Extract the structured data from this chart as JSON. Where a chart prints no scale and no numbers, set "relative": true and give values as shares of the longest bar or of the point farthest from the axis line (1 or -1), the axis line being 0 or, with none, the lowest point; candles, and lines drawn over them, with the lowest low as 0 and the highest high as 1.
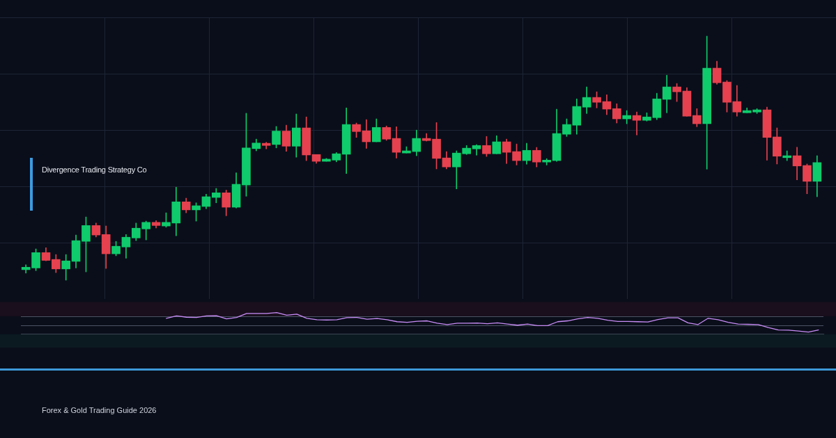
{
  "chart_data": [
    {
      "type": "candlestick",
      "title": "Divergence Trading Strategy Co",
      "annotations": [
        "Forex & Gold Trading Guide 2026"
      ],
      "relative": true,
      "grid": true,
      "tick_labels": false,
      "categories": [
        null,
        null,
        null,
        null,
        null,
        null,
        null,
        null,
        null,
        null,
        null,
        null,
        null,
        null,
        null,
        null,
        null,
        null,
        null,
        null,
        null,
        null,
        null,
        null,
        null,
        null,
        null,
        null,
        null,
        null,
        null,
        null,
        null,
        null,
        null,
        null,
        null,
        null,
        null,
        null,
        null,
        null,
        null,
        null,
        null,
        null,
        null,
        null,
        null,
        null,
        null,
        null,
        null,
        null,
        null,
        null,
        null,
        null,
        null,
        null,
        null,
        null,
        null,
        null,
        null,
        null,
        null,
        null,
        null,
        null,
        null,
        null,
        null,
        null,
        null,
        null,
        null,
        null,
        null,
        null
      ],
      "ohlc": [
        [
          0.043,
          0.063,
          0.029,
          0.053
        ],
        [
          0.05,
          0.128,
          0.039,
          0.113
        ],
        [
          0.113,
          0.133,
          0.079,
          0.081
        ],
        [
          0.085,
          0.105,
          0.031,
          0.046
        ],
        [
          0.046,
          0.105,
          0,
          0.079
        ],
        [
          0.077,
          0.185,
          0.05,
          0.162
        ],
        [
          0.159,
          0.259,
          0.034,
          0.224
        ],
        [
          0.224,
          0.234,
          0.177,
          0.185
        ],
        [
          0.187,
          0.222,
          0.048,
          0.108
        ],
        [
          0.108,
          0.159,
          0.1,
          0.139
        ],
        [
          0.136,
          0.187,
          0.09,
          0.176
        ],
        [
          0.173,
          0.234,
          0.162,
          0.213
        ],
        [
          0.21,
          0.242,
          0.165,
          0.237
        ],
        [
          0.237,
          0.244,
          0.214,
          0.224
        ],
        [
          0.222,
          0.276,
          0.217,
          0.237
        ],
        [
          0.234,
          0.381,
          0.182,
          0.321
        ],
        [
          0.321,
          0.336,
          0.276,
          0.288
        ],
        [
          0.288,
          0.317,
          0.242,
          0.305
        ],
        [
          0.302,
          0.352,
          0.293,
          0.342
        ],
        [
          0.339,
          0.376,
          0.317,
          0.358
        ],
        [
          0.358,
          0.369,
          0.264,
          0.299
        ],
        [
          0.299,
          0.44,
          0.296,
          0.393
        ],
        [
          0.39,
          0.684,
          0.344,
          0.542
        ],
        [
          0.539,
          0.578,
          0.53,
          0.562
        ],
        [
          0.561,
          0.565,
          0.538,
          0.552
        ],
        [
          0.556,
          0.63,
          0.542,
          0.611
        ],
        [
          0.611,
          0.635,
          0.528,
          0.549
        ],
        [
          0.549,
          0.681,
          0.504,
          0.624
        ],
        [
          0.624,
          0.669,
          0.49,
          0.513
        ],
        [
          0.515,
          0.515,
          0.479,
          0.487
        ],
        [
          0.487,
          0.499,
          0.487,
          0.496
        ],
        [
          0.492,
          0.523,
          0.485,
          0.518
        ],
        [
          0.516,
          0.706,
          0.437,
          0.638
        ],
        [
          0.638,
          0.644,
          0.585,
          0.609
        ],
        [
          0.612,
          0.658,
          0.54,
          0.567
        ],
        [
          0.567,
          0.661,
          0.567,
          0.626
        ],
        [
          0.626,
          0.632,
          0.573,
          0.578
        ],
        [
          0.581,
          0.629,
          0.5,
          0.524
        ],
        [
          0.521,
          0.547,
          0.521,
          0.53
        ],
        [
          0.527,
          0.615,
          0.51,
          0.581
        ],
        [
          0.581,
          0.601,
          0.57,
          0.572
        ],
        [
          0.578,
          0.646,
          0.456,
          0.499
        ],
        [
          0.501,
          0.527,
          0.456,
          0.464
        ],
        [
          0.464,
          0.53,
          0.374,
          0.521
        ],
        [
          0.518,
          0.552,
          0.515,
          0.541
        ],
        [
          0.538,
          0.555,
          0.512,
          0.552
        ],
        [
          0.552,
          0.589,
          0.507,
          0.518
        ],
        [
          0.518,
          0.592,
          0.518,
          0.567
        ],
        [
          0.567,
          0.578,
          0.478,
          0.524
        ],
        [
          0.527,
          0.558,
          0.472,
          0.49
        ],
        [
          0.49,
          0.561,
          0.475,
          0.532
        ],
        [
          0.532,
          0.544,
          0.464,
          0.484
        ],
        [
          0.484,
          0.498,
          0.472,
          0.492
        ],
        [
          0.49,
          0.701,
          0.487,
          0.601
        ],
        [
          0.598,
          0.661,
          0.589,
          0.638
        ],
        [
          0.635,
          0.743,
          0.598,
          0.712
        ],
        [
          0.709,
          0.792,
          0.683,
          0.749
        ],
        [
          0.749,
          0.772,
          0.706,
          0.729
        ],
        [
          0.732,
          0.76,
          0.678,
          0.701
        ],
        [
          0.703,
          0.723,
          0.644,
          0.661
        ],
        [
          0.661,
          0.695,
          0.641,
          0.675
        ],
        [
          0.675,
          0.689,
          0.595,
          0.655
        ],
        [
          0.655,
          0.686,
          0.652,
          0.669
        ],
        [
          0.666,
          0.766,
          0.658,
          0.743
        ],
        [
          0.741,
          0.84,
          0.686,
          0.792
        ],
        [
          0.792,
          0.806,
          0.732,
          0.772
        ],
        [
          0.775,
          0.789,
          0.672,
          0.672
        ],
        [
          0.675,
          0.703,
          0.629,
          0.641
        ],
        [
          0.641,
          1,
          0.455,
          0.869
        ],
        [
          0.869,
          0.897,
          0.803,
          0.809
        ],
        [
          0.812,
          0.818,
          0.689,
          0.729
        ],
        [
          0.732,
          0.798,
          0.672,
          0.689
        ],
        [
          0.686,
          0.706,
          0.686,
          0.695
        ],
        [
          0.689,
          0.703,
          0.683,
          0.698
        ],
        [
          0.698,
          0.709,
          0.492,
          0.585
        ],
        [
          0.587,
          0.624,
          0.476,
          0.508
        ],
        [
          0.502,
          0.53,
          0.49,
          0.51
        ],
        [
          0.51,
          0.545,
          0.411,
          0.468
        ],
        [
          0.47,
          0.476,
          0.354,
          0.405
        ],
        [
          0.405,
          0.51,
          0.342,
          0.482
        ]
      ],
      "colors": [
        "#0fcb6b",
        "#0fcb6b",
        "#e5414e",
        "#e5414e",
        "#0fcb6b",
        "#0fcb6b",
        "#0fcb6b",
        "#e5414e",
        "#e5414e",
        "#0fcb6b",
        "#0fcb6b",
        "#0fcb6b",
        "#0fcb6b",
        "#e5414e",
        "#0fcb6b",
        "#0fcb6b",
        "#e5414e",
        "#0fcb6b",
        "#0fcb6b",
        "#0fcb6b",
        "#e5414e",
        "#0fcb6b",
        "#0fcb6b",
        "#0fcb6b",
        "#e5414e",
        "#0fcb6b",
        "#e5414e",
        "#0fcb6b",
        "#e5414e",
        "#e5414e",
        "#0fcb6b",
        "#0fcb6b",
        "#0fcb6b",
        "#e5414e",
        "#e5414e",
        "#0fcb6b",
        "#e5414e",
        "#e5414e",
        "#0fcb6b",
        "#0fcb6b",
        "#e5414e",
        "#e5414e",
        "#e5414e",
        "#0fcb6b",
        "#0fcb6b",
        "#0fcb6b",
        "#e5414e",
        "#0fcb6b",
        "#e5414e",
        "#e5414e",
        "#0fcb6b",
        "#e5414e",
        "#0fcb6b",
        "#0fcb6b",
        "#0fcb6b",
        "#0fcb6b",
        "#0fcb6b",
        "#e5414e",
        "#e5414e",
        "#e5414e",
        "#0fcb6b",
        "#e5414e",
        "#0fcb6b",
        "#0fcb6b",
        "#0fcb6b",
        "#e5414e",
        "#e5414e",
        "#e5414e",
        "#0fcb6b",
        "#e5414e",
        "#e5414e",
        "#e5414e",
        "#0fcb6b",
        "#0fcb6b",
        "#e5414e",
        "#e5414e",
        "#0fcb6b",
        "#e5414e",
        "#e5414e",
        "#0fcb6b"
      ]
    },
    {
      "type": "line",
      "relative": true,
      "tick_labels": false,
      "categories": [
        null,
        null,
        null,
        null,
        null,
        null,
        null,
        null,
        null,
        null,
        null,
        null,
        null,
        null,
        null,
        null,
        null,
        null,
        null,
        null,
        null,
        null,
        null,
        null,
        null,
        null,
        null,
        null,
        null,
        null,
        null,
        null,
        null,
        null,
        null,
        null,
        null,
        null,
        null,
        null,
        null,
        null,
        null,
        null,
        null,
        null,
        null,
        null,
        null,
        null,
        null,
        null,
        null,
        null,
        null,
        null,
        null,
        null,
        null,
        null,
        null,
        null,
        null,
        null,
        null,
        null,
        null,
        null,
        null,
        null,
        null,
        null,
        null,
        null,
        null,
        null,
        null,
        null,
        null,
        null
      ],
      "series": [
        {
          "color": "#c98df7",
          "values": [
            null,
            null,
            null,
            null,
            null,
            null,
            null,
            null,
            null,
            null,
            null,
            null,
            null,
            null,
            0.74,
            0.85,
            0.79,
            0.78,
            0.85,
            0.86,
            0.71,
            0.78,
            0.96,
            0.96,
            0.96,
            1,
            0.88,
            0.93,
            0.74,
            0.67,
            0.66,
            0.67,
            0.77,
            0.78,
            0.7,
            0.73,
            0.67,
            0.58,
            0.55,
            0.6,
            0.62,
            0.51,
            0.45,
            0.51,
            0.51,
            0.52,
            0.49,
            0.53,
            0.47,
            0.42,
            0.47,
            0.4,
            0.4,
            0.58,
            0.62,
            0.71,
            0.78,
            0.74,
            0.65,
            0.59,
            0.59,
            0.58,
            0.57,
            0.68,
            0.76,
            0.76,
            0.53,
            0.45,
            0.74,
            0.67,
            0.55,
            0.47,
            0.46,
            0.45,
            0.31,
            0.2,
            0.19,
            0.15,
            0.1,
            0.2
          ]
        }
      ],
      "ref_lines": [
        {
          "axis": "y",
          "value": 0.84,
          "color": "#4e5466"
        },
        {
          "axis": "y",
          "value": 0.42,
          "color": "#4e5466"
        }
      ],
      "bands": [
        {
          "axis": "y",
          "from": 0.84,
          "to": 1.49,
          "color": "#1a0f1d"
        },
        {
          "axis": "y",
          "from": 0,
          "to": -0.62,
          "color": "#0b1a21"
        }
      ]
    }
  ]
}
